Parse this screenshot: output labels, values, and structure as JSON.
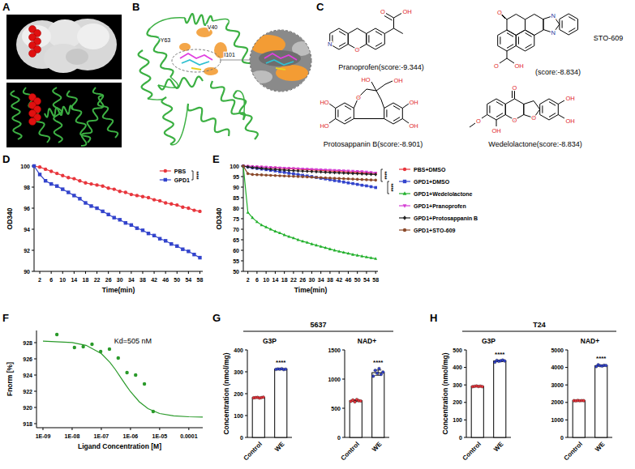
{
  "panel_labels": [
    "A",
    "B",
    "C",
    "D",
    "E",
    "F",
    "G",
    "H"
  ],
  "residues": [
    "Y63",
    "V40",
    "I101"
  ],
  "compounds": [
    {
      "name": "Pranoprofen",
      "score": "(score:-9.344)",
      "atoms": [
        "N",
        "O",
        "O",
        "OH"
      ]
    },
    {
      "name": "STO-609",
      "score": "(score:-8.834)",
      "atoms": [
        "O",
        "N",
        "N",
        "O",
        "OH"
      ]
    },
    {
      "name": "Protosappanin B",
      "score": "(score:-8.901)",
      "atoms": [
        "HO",
        "HO",
        "OH",
        "O",
        "HO",
        "OH",
        "OH"
      ]
    },
    {
      "name": "Wedelolactone",
      "score": "(score:-8.834)",
      "atoms": [
        "O",
        "O",
        "O",
        "OH",
        "OH",
        "O",
        "OH"
      ]
    }
  ],
  "groups": [
    {
      "title": "5637"
    },
    {
      "title": "T24"
    }
  ],
  "chart_data": [
    {
      "type": "line",
      "x_label": "Time(min)",
      "y_label": "OD340",
      "legend": "upper right",
      "annotation": "****",
      "xlim": [
        0,
        59
      ],
      "xticks": [
        2,
        6,
        10,
        14,
        18,
        22,
        26,
        30,
        34,
        38,
        42,
        46,
        50,
        54,
        58
      ],
      "ylim": [
        90,
        100
      ],
      "yticks": [
        90,
        92,
        94,
        96,
        98,
        100
      ],
      "x": [
        0,
        2,
        4,
        6,
        8,
        10,
        12,
        14,
        16,
        18,
        20,
        22,
        24,
        26,
        28,
        30,
        32,
        34,
        36,
        38,
        40,
        42,
        44,
        46,
        48,
        50,
        52,
        54,
        56,
        58
      ],
      "series": [
        {
          "name": "PBS",
          "color": "#e8363d",
          "marker": "circle",
          "line_style": "solid",
          "values": [
            100,
            99.9,
            99.7,
            99.5,
            99.3,
            99.1,
            98.9,
            98.8,
            98.6,
            98.4,
            98.3,
            98.2,
            98.1,
            97.9,
            97.8,
            97.6,
            97.5,
            97.3,
            97.2,
            97.1,
            97.0,
            96.8,
            96.7,
            96.5,
            96.4,
            96.3,
            96.1,
            96.0,
            95.8,
            95.7
          ]
        },
        {
          "name": "GPD1",
          "color": "#3344cc",
          "marker": "square",
          "line_style": "solid",
          "values": [
            100,
            99.2,
            98.6,
            98.3,
            98.1,
            97.8,
            97.5,
            97.2,
            96.9,
            96.5,
            96.2,
            96.0,
            95.7,
            95.4,
            95.1,
            94.9,
            94.6,
            94.4,
            94.1,
            93.9,
            93.6,
            93.4,
            93.1,
            92.9,
            92.6,
            92.4,
            92.1,
            91.9,
            91.6,
            91.3
          ]
        }
      ]
    },
    {
      "type": "line",
      "x_label": "Time(min)",
      "y_label": "OD340",
      "legend": "right",
      "annotations": [
        "****",
        "****"
      ],
      "xlim": [
        0,
        59
      ],
      "xticks": [
        2,
        6,
        10,
        14,
        18,
        22,
        26,
        30,
        34,
        38,
        42,
        46,
        50,
        54,
        58
      ],
      "ylim": [
        50,
        100
      ],
      "yticks": [
        50,
        55,
        60,
        65,
        70,
        75,
        80,
        85,
        90,
        95,
        100
      ],
      "x": [
        0,
        2,
        4,
        6,
        8,
        10,
        12,
        14,
        16,
        18,
        20,
        22,
        24,
        26,
        28,
        30,
        32,
        34,
        36,
        38,
        40,
        42,
        44,
        46,
        48,
        50,
        52,
        54,
        56,
        58
      ],
      "series": [
        {
          "name": "PBS+DMSO",
          "color": "#e8363d",
          "marker": "circle",
          "line_style": "solid",
          "values": [
            100,
            99.9,
            99.8,
            99.6,
            99.5,
            99.4,
            99.3,
            99.2,
            99.0,
            98.9,
            98.8,
            98.7,
            98.6,
            98.4,
            98.3,
            98.2,
            98.1,
            98.0,
            97.8,
            97.7,
            97.6,
            97.5,
            97.4,
            97.2,
            97.1,
            97.0,
            96.9,
            96.8,
            96.6,
            96.5
          ]
        },
        {
          "name": "GPD1+DMSO",
          "color": "#3344cc",
          "marker": "square",
          "line_style": "solid",
          "values": [
            100,
            99.6,
            99.2,
            98.9,
            98.6,
            98.3,
            98.0,
            97.7,
            97.3,
            97.0,
            96.6,
            96.3,
            96.0,
            95.6,
            95.3,
            95.0,
            94.6,
            94.2,
            93.9,
            93.5,
            93.1,
            92.8,
            92.4,
            92.0,
            91.7,
            91.3,
            90.9,
            90.6,
            90.2,
            89.8
          ]
        },
        {
          "name": "GPD1+Wedelolactone",
          "color": "#22b02c",
          "marker": "triangle",
          "line_style": "solid",
          "values": [
            100,
            78,
            75.5,
            73.5,
            72,
            71,
            70,
            69,
            68.2,
            67.3,
            66.5,
            65.8,
            65,
            64.3,
            63.7,
            63,
            62.4,
            61.8,
            61.2,
            60.6,
            60,
            59.5,
            59,
            58.5,
            58,
            57.6,
            57.2,
            56.8,
            56.4,
            56
          ]
        },
        {
          "name": "GPD1+Pranoprofen",
          "color": "#d43fd4",
          "marker": "triangle_down",
          "line_style": "solid",
          "values": [
            100,
            99.9,
            99.8,
            99.7,
            99.6,
            99.5,
            99.4,
            99.3,
            99.2,
            99.1,
            99.0,
            98.9,
            98.8,
            98.7,
            98.6,
            98.5,
            98.4,
            98.3,
            98.2,
            98.1,
            98.0,
            97.9,
            97.8,
            97.7,
            97.6,
            97.5,
            97.4,
            97.2,
            97.0,
            96.8
          ]
        },
        {
          "name": "GPD1+Protosappanin B",
          "color": "#222222",
          "marker": "diamond",
          "line_style": "solid",
          "values": [
            100,
            99.6,
            99.3,
            99.1,
            98.9,
            98.7,
            98.5,
            98.4,
            98.2,
            98.1,
            97.9,
            97.8,
            97.7,
            97.6,
            97.5,
            97.4,
            97.3,
            97.2,
            97.1,
            97.0,
            96.9,
            96.8,
            96.7,
            96.6,
            96.5,
            96.4,
            96.3,
            96.2,
            96.1,
            96.0
          ]
        },
        {
          "name": "GPD1+STO-609",
          "color": "#8b4a2b",
          "marker": "circle",
          "line_style": "solid",
          "values": [
            100,
            96.4,
            96.0,
            95.9,
            95.8,
            95.7,
            95.6,
            95.5,
            95.4,
            95.3,
            95.2,
            95.1,
            95.0,
            94.9,
            94.8,
            94.7,
            94.6,
            94.5,
            94.4,
            94.3,
            94.2,
            94.1,
            94.0,
            93.9,
            93.8,
            93.7,
            93.6,
            93.5,
            93.4,
            93.3
          ]
        }
      ]
    },
    {
      "type": "scatter",
      "log": "x",
      "x_label": "Ligand Concentration [M]",
      "y_label": "Fnorm [%]",
      "annotation": "Kd=505 nM",
      "xlim": [
        6e-10,
        0.0003
      ],
      "xticks": [
        {
          "value": 1e-09,
          "label": "1E-09"
        },
        {
          "value": 1e-08,
          "label": "1E-08"
        },
        {
          "value": 1e-07,
          "label": "1E-07"
        },
        {
          "value": 1e-06,
          "label": "1E-06"
        },
        {
          "value": 1e-05,
          "label": "1E-05"
        },
        0.0001
      ],
      "ylim": [
        917.5,
        929.5
      ],
      "yticks": [
        918,
        920,
        922,
        924,
        926,
        928
      ],
      "series": [
        {
          "type": "scatter",
          "color": "#2a9a2a",
          "marker": "circle",
          "x": [
            3e-09,
            1.2e-08,
            2.4e-08,
            4.8e-08,
            9.5e-08,
            1.9e-07,
            3.8e-07,
            7.6e-07,
            1.5e-06,
            3e-06,
            6e-06
          ],
          "values": [
            929.0,
            927.4,
            927.5,
            927.8,
            926.9,
            927.2,
            926.1,
            924.3,
            924.0,
            922.9,
            919.5
          ]
        },
        {
          "type": "line",
          "color": "#2a9a2a",
          "line_style": "solid",
          "x": [
            1e-09,
            1e-08,
            3e-08,
            1e-07,
            2e-07,
            3e-07,
            5e-07,
            7e-07,
            1e-06,
            2e-06,
            4e-06,
            1e-05,
            3e-05,
            0.0001,
            0.0003
          ],
          "values": [
            928.18,
            928.02,
            927.67,
            926.65,
            925.53,
            924.7,
            923.52,
            922.74,
            921.95,
            920.7,
            919.85,
            919.25,
            918.96,
            918.85,
            918.82
          ]
        }
      ]
    },
    {
      "type": "bar",
      "title": "G3P",
      "y_label": "Concentration (nmol/mg)",
      "annotation": "****",
      "categories": [
        "Control",
        "WE"
      ],
      "values": [
        182,
        312
      ],
      "errors": [
        1.5,
        1.5
      ],
      "points": [
        [
          181,
          182,
          183,
          180,
          182,
          184
        ],
        [
          311,
          313,
          312,
          314,
          310,
          312
        ]
      ],
      "colors": [
        "#e8363d",
        "#3344cc"
      ],
      "ylim": [
        0,
        400
      ],
      "yticks": [
        0,
        100,
        200,
        300,
        400
      ]
    },
    {
      "type": "bar",
      "title": "NAD+",
      "annotation": "****",
      "categories": [
        "Control",
        "WE"
      ],
      "values": [
        630,
        1110
      ],
      "errors": [
        15,
        45
      ],
      "points": [
        [
          620,
          640,
          610,
          650,
          630,
          625
        ],
        [
          1050,
          1150,
          1100,
          1180,
          1080,
          1120
        ]
      ],
      "colors": [
        "#e8363d",
        "#3344cc"
      ],
      "ylim": [
        0,
        1500
      ],
      "yticks": [
        0,
        500,
        1000,
        1500
      ]
    },
    {
      "type": "bar",
      "title": "G3P",
      "y_label": "Concentration (nmol/mg)",
      "annotation": "****",
      "categories": [
        "Control",
        "WE"
      ],
      "values": [
        292,
        437
      ],
      "errors": [
        1.5,
        4
      ],
      "points": [
        [
          290,
          292,
          294,
          291,
          293,
          290
        ],
        [
          430,
          440,
          435,
          438,
          442,
          437
        ]
      ],
      "colors": [
        "#e8363d",
        "#3344cc"
      ],
      "ylim": [
        0,
        500
      ],
      "yticks": [
        0,
        100,
        200,
        300,
        400,
        500
      ]
    },
    {
      "type": "bar",
      "title": "NAD+",
      "annotation": "****",
      "categories": [
        "Control",
        "WE"
      ],
      "values": [
        2100,
        4100
      ],
      "errors": [
        8,
        35
      ],
      "points": [
        [
          2100,
          2090,
          2110,
          2095,
          2105,
          2100
        ],
        [
          4050,
          4150,
          4100,
          4080,
          4120,
          4110
        ]
      ],
      "colors": [
        "#e8363d",
        "#3344cc"
      ],
      "ylim": [
        0,
        5000
      ],
      "yticks": [
        0,
        1000,
        2000,
        3000,
        4000,
        5000
      ]
    }
  ]
}
